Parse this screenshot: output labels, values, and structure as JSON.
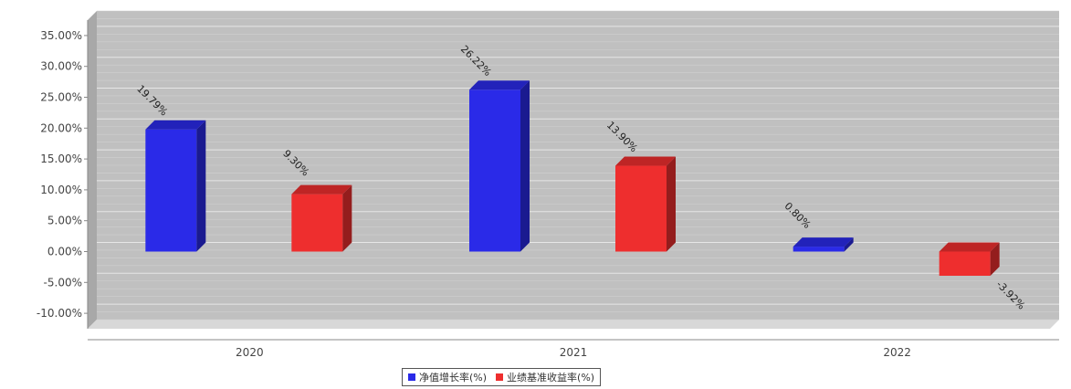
{
  "chart_data": {
    "type": "bar",
    "title": "",
    "categories": [
      "2020",
      "2021",
      "2022"
    ],
    "series": [
      {
        "name": "净值增长率(%)",
        "values": [
          19.79,
          26.22,
          0.8
        ],
        "labels": [
          "19.79%",
          "26.22%",
          "0.80%"
        ],
        "color": "#2a2ae8"
      },
      {
        "name": "业绩基准收益率(%)",
        "values": [
          9.3,
          13.9,
          -3.92
        ],
        "labels": [
          "9.30%",
          "13.90%",
          "-3.92%"
        ],
        "color": "#ee2e2e"
      }
    ],
    "ylim": [
      -12.5,
      37.5
    ],
    "yticks": [
      -10,
      -5,
      0,
      5,
      10,
      15,
      20,
      25,
      30,
      35
    ],
    "ytick_labels": [
      "-10.00%",
      "-5.00%",
      "0.00%",
      "5.00%",
      "10.00%",
      "15.00%",
      "20.00%",
      "25.00%",
      "30.00%",
      "35.00%"
    ],
    "grid": true,
    "legend_position": "bottom-center",
    "plot_background": "#c0c0c0"
  }
}
